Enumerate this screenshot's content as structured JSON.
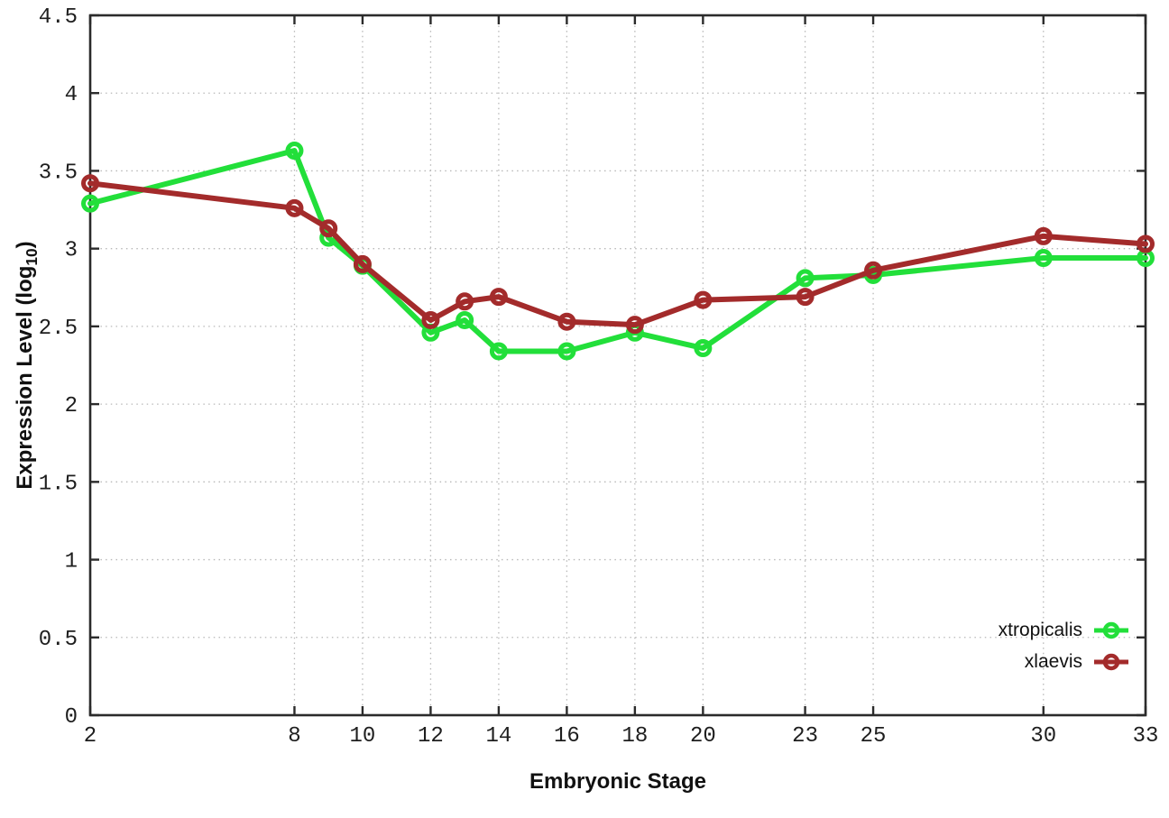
{
  "chart_data": {
    "type": "line",
    "title": "",
    "xlabel": "Embryonic Stage",
    "ylabel": "Expression Level (log10)",
    "ylabel_parts": {
      "main": "Expression Level (log",
      "sub": "10",
      "end": ")"
    },
    "xlim": [
      2,
      33
    ],
    "ylim": [
      0,
      4.5
    ],
    "grid": true,
    "legend_position": "bottom-right",
    "x": [
      2,
      8,
      9,
      10,
      12,
      13,
      14,
      16,
      18,
      20,
      23,
      25,
      30,
      33
    ],
    "xticks": [
      2,
      8,
      10,
      12,
      14,
      16,
      18,
      20,
      23,
      25,
      30,
      33
    ],
    "xtick_labels": [
      "2",
      "8",
      "10",
      "12",
      "14",
      "16",
      "18",
      "20",
      "23",
      "25",
      "30",
      "33"
    ],
    "yticks": [
      0,
      0.5,
      1,
      1.5,
      2,
      2.5,
      3,
      3.5,
      4,
      4.5
    ],
    "ytick_labels": [
      "0",
      "0.5",
      "1",
      "1.5",
      "2",
      "2.5",
      "3",
      "3.5",
      "4",
      "4.5"
    ],
    "series": [
      {
        "name": "xtropicalis",
        "color": "#22df3a",
        "values": [
          3.29,
          3.63,
          3.07,
          2.89,
          2.46,
          2.54,
          2.34,
          2.34,
          2.46,
          2.36,
          2.81,
          2.83,
          2.94,
          2.94
        ]
      },
      {
        "name": "xlaevis",
        "color": "#a32b2b",
        "values": [
          3.42,
          3.26,
          3.13,
          2.9,
          2.54,
          2.66,
          2.69,
          2.53,
          2.51,
          2.67,
          2.69,
          2.86,
          3.08,
          3.03
        ]
      }
    ]
  }
}
